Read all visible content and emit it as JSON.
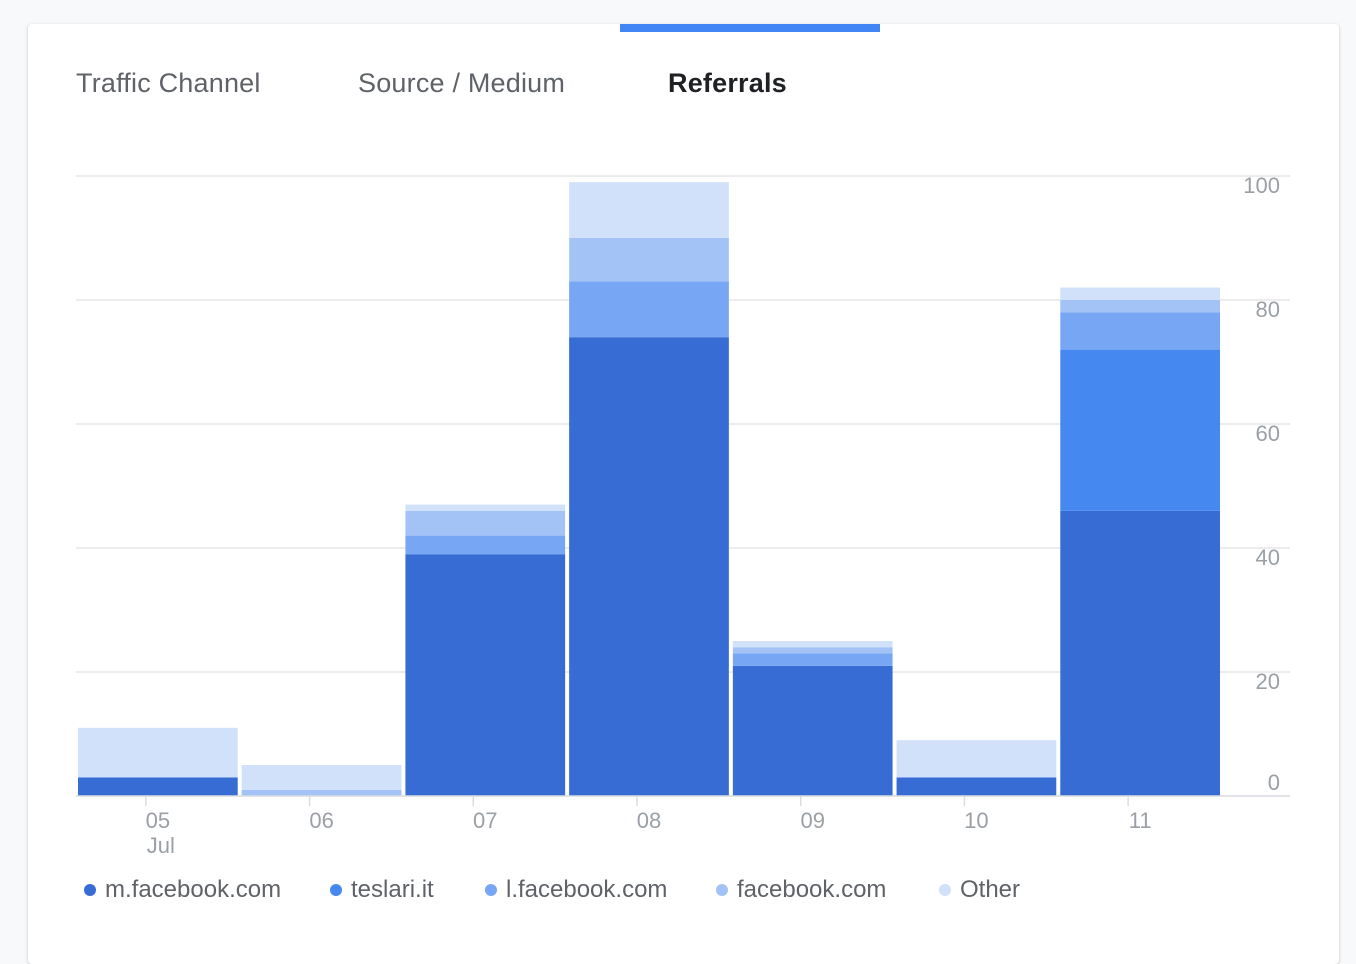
{
  "tabs": [
    {
      "label": "Traffic Channel",
      "active": false
    },
    {
      "label": "Source / Medium",
      "active": false
    },
    {
      "label": "Referrals",
      "active": true
    }
  ],
  "colors": {
    "accent": "#4285f4",
    "series": [
      "#366cd3",
      "#4589f0",
      "#77a6f4",
      "#a3c3f7",
      "#d1e1f9"
    ]
  },
  "chart_data": {
    "type": "bar",
    "stacked": true,
    "categories": [
      "05",
      "06",
      "07",
      "08",
      "09",
      "10",
      "11"
    ],
    "category_sublabels": [
      "Jul",
      "",
      "",
      "",
      "",
      "",
      ""
    ],
    "series": [
      {
        "name": "m.facebook.com",
        "values": [
          3,
          0,
          39,
          74,
          21,
          3,
          46
        ]
      },
      {
        "name": "teslari.it",
        "values": [
          0,
          0,
          0,
          0,
          0,
          0,
          26
        ]
      },
      {
        "name": "l.facebook.com",
        "values": [
          0,
          0,
          3,
          9,
          2,
          0,
          6
        ]
      },
      {
        "name": "facebook.com",
        "values": [
          0,
          1,
          4,
          7,
          1,
          0,
          2
        ]
      },
      {
        "name": "Other",
        "values": [
          8,
          4,
          1,
          9,
          1,
          6,
          2
        ]
      }
    ],
    "y_axis": {
      "position": "right",
      "ticks": [
        0,
        20,
        40,
        60,
        80,
        100
      ],
      "ylim": [
        0,
        100
      ]
    },
    "grid": true,
    "legend_position": "bottom-left"
  }
}
